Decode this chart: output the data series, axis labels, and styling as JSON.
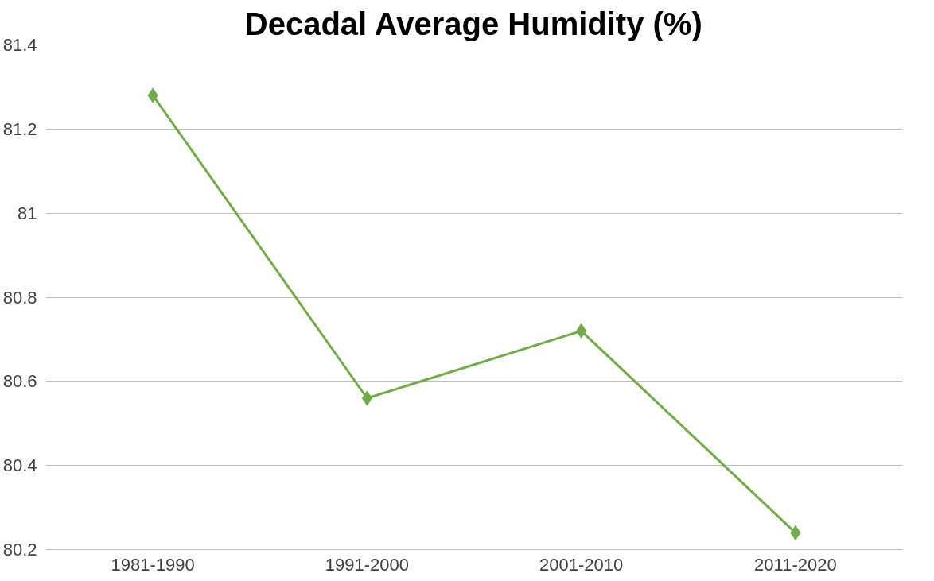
{
  "chart_data": {
    "type": "line",
    "title": "Decadal Average Humidity (%)",
    "categories": [
      "1981-1990",
      "1991-2000",
      "2001-2010",
      "2011-2020"
    ],
    "series": [
      {
        "color": "#70ad47",
        "values": [
          81.28,
          80.56,
          80.72,
          80.24
        ]
      }
    ],
    "ylim": [
      80.2,
      81.4
    ],
    "yticks": [
      80.2,
      80.4,
      80.6,
      80.8,
      81,
      81.2,
      81.4
    ],
    "grid": "y",
    "marker": "diamond",
    "line_style": "solid"
  }
}
